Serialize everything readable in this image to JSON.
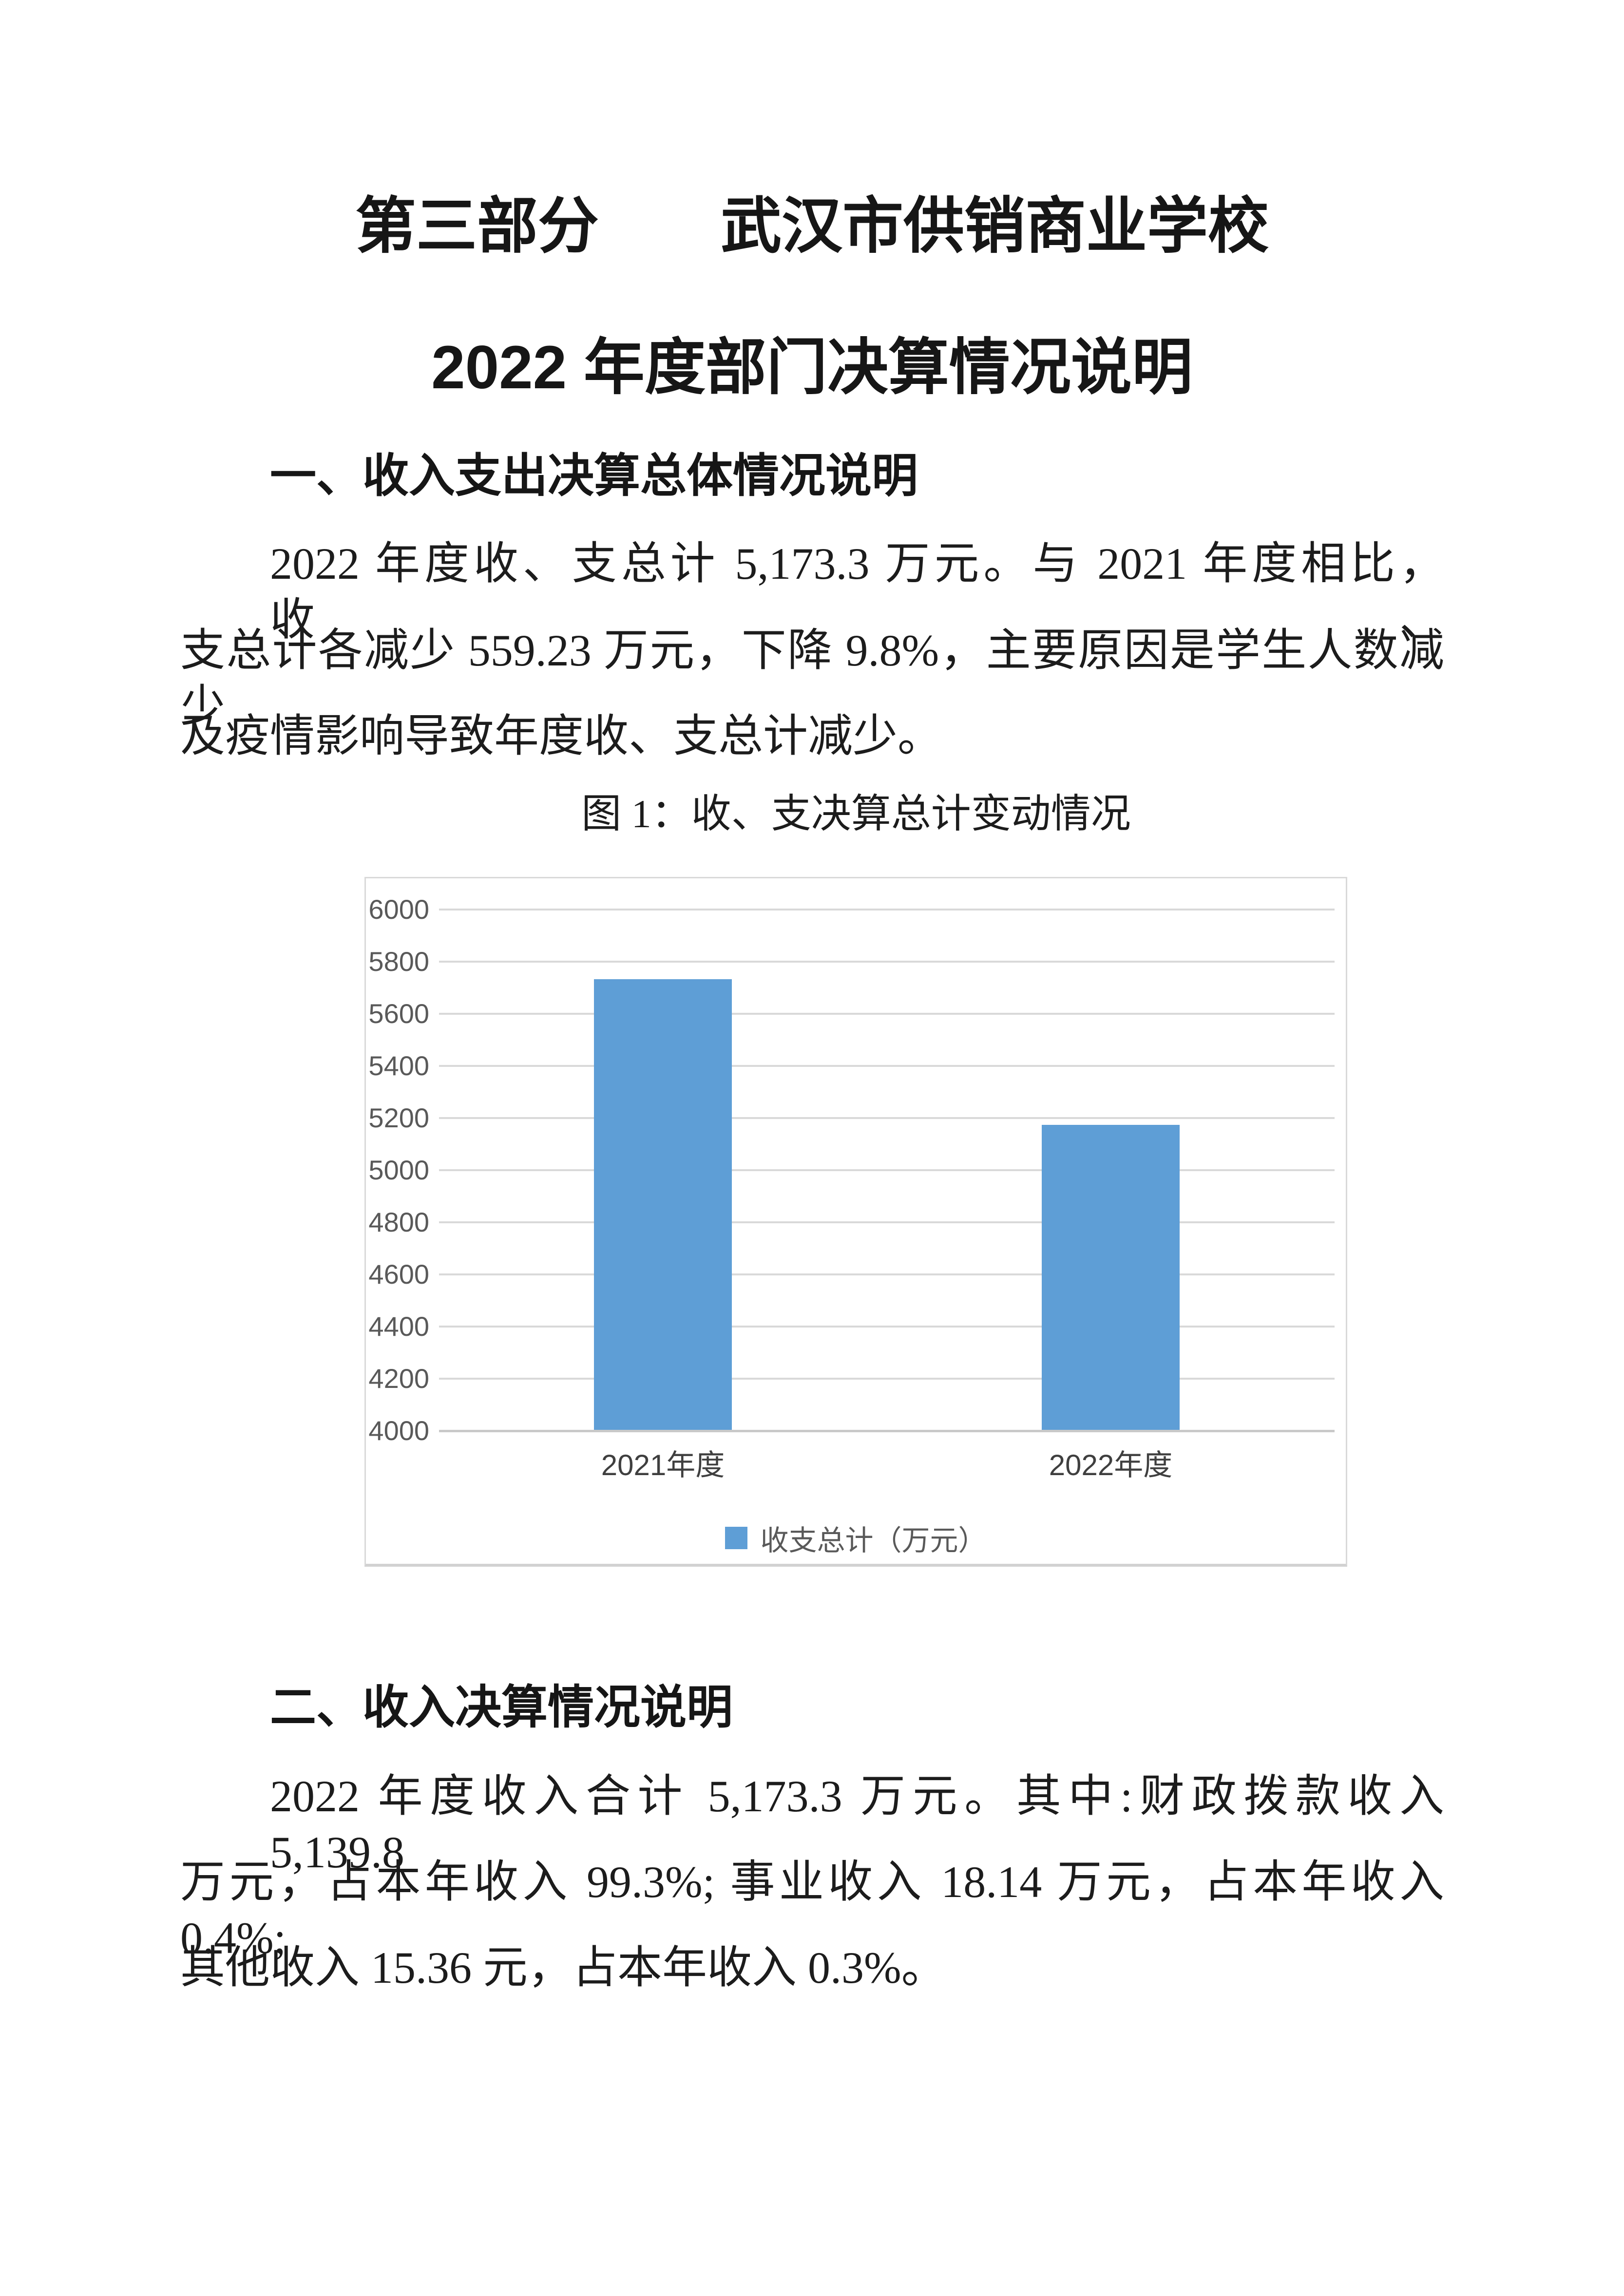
{
  "document": {
    "title_line1": "第三部分　　武汉市供销商业学校",
    "title_line2": "2022 年度部门决算情况说明"
  },
  "section1": {
    "heading": "一、收入支出决算总体情况说明",
    "lines": [
      "2022 年度收、支总计 5,173.3 万元。与 2021 年度相比，收、",
      "支总计各减少 559.23 万元，下降 9.8%，主要原因是学生人数减少",
      "及疫情影响导致年度收、支总计减少。"
    ]
  },
  "figure1": {
    "caption": "图 1：收、支决算总计变动情况"
  },
  "chart_data": {
    "type": "bar",
    "title": "图 1：收、支决算总计变动情况",
    "categories": [
      "2021年度",
      "2022年度"
    ],
    "series": [
      {
        "name": "收支总计（万元）",
        "values": [
          5732.5,
          5173.3
        ]
      }
    ],
    "xlabel": "",
    "ylabel": "",
    "ylim": [
      4000,
      6000
    ],
    "ytick_step": 200,
    "yticks": [
      4000,
      4200,
      4400,
      4600,
      4800,
      5000,
      5200,
      5400,
      5600,
      5800,
      6000
    ],
    "grid": true,
    "legend_position": "bottom",
    "colors": {
      "bar": "#5E9ED6",
      "grid": "#d9d9d9",
      "grid_baseline": "#c9c9c9",
      "axis_text": "#595959",
      "category_text": "#3f3f3f",
      "frame": "#d9d9d9"
    }
  },
  "section2": {
    "heading": "二、收入决算情况说明",
    "lines": [
      "2022 年度收入合计 5,173.3 万元。其中:财政拨款收入 5,139.8",
      "万元，占本年收入 99.3%; 事业收入 18.14 万元，占本年收入 0.4%;",
      "其他收入 15.36 元，占本年收入 0.3%。"
    ]
  }
}
